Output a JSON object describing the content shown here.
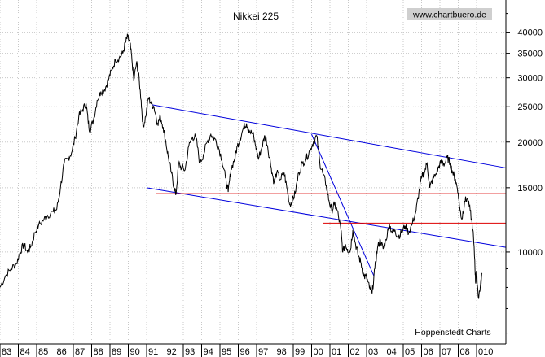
{
  "chart_data": {
    "type": "line",
    "title": "Nikkei 225",
    "watermark": "www.chartbuero.de",
    "source_note": "Hoppenstedt Charts",
    "yscale": "log",
    "ylim": [
      5600,
      49000
    ],
    "y_ticks": [
      10000,
      15000,
      20000,
      25000,
      30000,
      35000,
      40000
    ],
    "y_tick_labels": [
      "10000",
      "15000",
      "20000",
      "25000",
      "30000",
      "35000",
      "40000"
    ],
    "xlim": [
      1983.0,
      2010.6
    ],
    "x_tick_labels": [
      "83",
      "84",
      "85",
      "86",
      "87",
      "88",
      "89",
      "90",
      "91",
      "92",
      "93",
      "94",
      "95",
      "96",
      "97",
      "98",
      "99",
      "00",
      "01",
      "02",
      "03",
      "04",
      "05",
      "06",
      "07",
      "08",
      "010"
    ],
    "grid": true,
    "series": [
      {
        "color": "#000000",
        "points": [
          [
            1983.0,
            8000
          ],
          [
            1983.3,
            8600
          ],
          [
            1983.6,
            9000
          ],
          [
            1983.9,
            9300
          ],
          [
            1984.1,
            10000
          ],
          [
            1984.3,
            10500
          ],
          [
            1984.5,
            10000
          ],
          [
            1984.7,
            10400
          ],
          [
            1984.9,
            11300
          ],
          [
            1985.1,
            11800
          ],
          [
            1985.4,
            12300
          ],
          [
            1985.6,
            12600
          ],
          [
            1985.9,
            12900
          ],
          [
            1986.1,
            13100
          ],
          [
            1986.3,
            15000
          ],
          [
            1986.5,
            17500
          ],
          [
            1986.7,
            18000
          ],
          [
            1986.9,
            18700
          ],
          [
            1987.1,
            20500
          ],
          [
            1987.3,
            23500
          ],
          [
            1987.5,
            24500
          ],
          [
            1987.7,
            25500
          ],
          [
            1987.8,
            23000
          ],
          [
            1987.9,
            21500
          ],
          [
            1988.1,
            23000
          ],
          [
            1988.3,
            26000
          ],
          [
            1988.5,
            27500
          ],
          [
            1988.7,
            27800
          ],
          [
            1988.9,
            29500
          ],
          [
            1989.1,
            31500
          ],
          [
            1989.3,
            33500
          ],
          [
            1989.5,
            34000
          ],
          [
            1989.7,
            35000
          ],
          [
            1989.85,
            37500
          ],
          [
            1989.97,
            38900
          ],
          [
            1990.1,
            37000
          ],
          [
            1990.2,
            33500
          ],
          [
            1990.3,
            29500
          ],
          [
            1990.45,
            33000
          ],
          [
            1990.55,
            31000
          ],
          [
            1990.7,
            26000
          ],
          [
            1990.8,
            22000
          ],
          [
            1990.95,
            23500
          ],
          [
            1991.1,
            26500
          ],
          [
            1991.25,
            25500
          ],
          [
            1991.4,
            25000
          ],
          [
            1991.6,
            22500
          ],
          [
            1991.75,
            23500
          ],
          [
            1991.9,
            22000
          ],
          [
            1992.05,
            20000
          ],
          [
            1992.2,
            18000
          ],
          [
            1992.35,
            16500
          ],
          [
            1992.5,
            15000
          ],
          [
            1992.6,
            14400
          ],
          [
            1992.75,
            17500
          ],
          [
            1992.9,
            17000
          ],
          [
            1993.1,
            16800
          ],
          [
            1993.3,
            19500
          ],
          [
            1993.5,
            20700
          ],
          [
            1993.7,
            20500
          ],
          [
            1993.9,
            17500
          ],
          [
            1994.1,
            18500
          ],
          [
            1994.3,
            20000
          ],
          [
            1994.5,
            21000
          ],
          [
            1994.7,
            20500
          ],
          [
            1994.9,
            19500
          ],
          [
            1995.1,
            18000
          ],
          [
            1995.3,
            16000
          ],
          [
            1995.45,
            14600
          ],
          [
            1995.6,
            16800
          ],
          [
            1995.8,
            18000
          ],
          [
            1995.95,
            19500
          ],
          [
            1996.1,
            20500
          ],
          [
            1996.3,
            22000
          ],
          [
            1996.45,
            22500
          ],
          [
            1996.6,
            21500
          ],
          [
            1996.8,
            21000
          ],
          [
            1996.95,
            19500
          ],
          [
            1997.1,
            18000
          ],
          [
            1997.3,
            19500
          ],
          [
            1997.45,
            20800
          ],
          [
            1997.6,
            19500
          ],
          [
            1997.8,
            17000
          ],
          [
            1997.95,
            15500
          ],
          [
            1998.1,
            16500
          ],
          [
            1998.3,
            15800
          ],
          [
            1998.5,
            16500
          ],
          [
            1998.65,
            15000
          ],
          [
            1998.8,
            13500
          ],
          [
            1998.95,
            13800
          ],
          [
            1999.1,
            14500
          ],
          [
            1999.3,
            16500
          ],
          [
            1999.5,
            17500
          ],
          [
            1999.7,
            18000
          ],
          [
            1999.9,
            19000
          ],
          [
            2000.1,
            20000
          ],
          [
            2000.28,
            20800
          ],
          [
            2000.45,
            17500
          ],
          [
            2000.6,
            16500
          ],
          [
            2000.8,
            15200
          ],
          [
            2000.95,
            13800
          ],
          [
            2001.1,
            13000
          ],
          [
            2001.25,
            13500
          ],
          [
            2001.4,
            13000
          ],
          [
            2001.6,
            11500
          ],
          [
            2001.7,
            10000
          ],
          [
            2001.85,
            10500
          ],
          [
            2001.95,
            10200
          ],
          [
            2002.1,
            10000
          ],
          [
            2002.25,
            11500
          ],
          [
            2002.4,
            10500
          ],
          [
            2002.55,
            9800
          ],
          [
            2002.7,
            9300
          ],
          [
            2002.85,
            8600
          ],
          [
            2003.0,
            8500
          ],
          [
            2003.15,
            8000
          ],
          [
            2003.3,
            7700
          ],
          [
            2003.45,
            9000
          ],
          [
            2003.6,
            10300
          ],
          [
            2003.75,
            10800
          ],
          [
            2003.9,
            10200
          ],
          [
            2004.05,
            10800
          ],
          [
            2004.25,
            11900
          ],
          [
            2004.4,
            11300
          ],
          [
            2004.55,
            11500
          ],
          [
            2004.7,
            11000
          ],
          [
            2004.9,
            11300
          ],
          [
            2005.1,
            11800
          ],
          [
            2005.3,
            11300
          ],
          [
            2005.5,
            12000
          ],
          [
            2005.7,
            13000
          ],
          [
            2005.85,
            14500
          ],
          [
            2006.0,
            16000
          ],
          [
            2006.15,
            16500
          ],
          [
            2006.3,
            17500
          ],
          [
            2006.45,
            15000
          ],
          [
            2006.6,
            15800
          ],
          [
            2006.8,
            16400
          ],
          [
            2006.95,
            17200
          ],
          [
            2007.1,
            17700
          ],
          [
            2007.25,
            17400
          ],
          [
            2007.4,
            18200
          ],
          [
            2007.55,
            17500
          ],
          [
            2007.7,
            16500
          ],
          [
            2007.85,
            15800
          ],
          [
            2008.0,
            14500
          ],
          [
            2008.1,
            13000
          ],
          [
            2008.2,
            12300
          ],
          [
            2008.35,
            13800
          ],
          [
            2008.5,
            14000
          ],
          [
            2008.65,
            13000
          ],
          [
            2008.8,
            11500
          ],
          [
            2008.9,
            9500
          ],
          [
            2008.95,
            8200
          ],
          [
            2009.0,
            8800
          ],
          [
            2009.1,
            7500
          ],
          [
            2009.2,
            8000
          ],
          [
            2009.3,
            8700
          ]
        ]
      }
    ],
    "trendlines": [
      {
        "color": "#0000dd",
        "from": [
          1991.3,
          25300
        ],
        "to": [
          2010.6,
          17000
        ]
      },
      {
        "color": "#0000dd",
        "from": [
          1991.0,
          15000
        ],
        "to": [
          2010.6,
          10300
        ]
      },
      {
        "color": "#0000dd",
        "from": [
          2000.0,
          21000
        ],
        "to": [
          2003.4,
          8600
        ]
      },
      {
        "color": "#dd0000",
        "from": [
          1991.5,
          14450
        ],
        "to": [
          2010.6,
          14450
        ]
      },
      {
        "color": "#dd0000",
        "from": [
          2000.6,
          12000
        ],
        "to": [
          2010.6,
          12000
        ]
      }
    ]
  }
}
